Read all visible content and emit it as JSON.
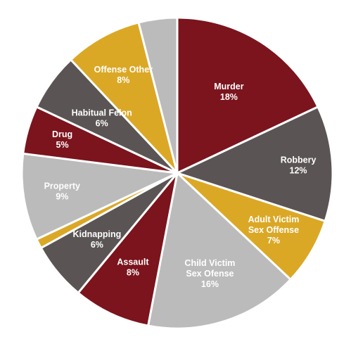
{
  "chart_data": {
    "type": "pie",
    "start_angle_deg": 0,
    "direction": "clockwise",
    "slices": [
      {
        "label": "Murder",
        "value": 18,
        "display": "18%",
        "color": "#7b141d",
        "lines": [
          "Murder",
          "18%"
        ]
      },
      {
        "label": "Robbery",
        "value": 12,
        "display": "12%",
        "color": "#5a5554",
        "lines": [
          "Robbery",
          "12%"
        ]
      },
      {
        "label": "Adult Victim Sex Offense",
        "value": 7,
        "display": "7%",
        "color": "#dba826",
        "lines": [
          "Adult Victim",
          "Sex Offense",
          "7%"
        ]
      },
      {
        "label": "Child Victim Sex Ofense",
        "value": 16,
        "display": "16%",
        "color": "#bbbbbb",
        "lines": [
          "Child Victim",
          "Sex Ofense",
          "16%"
        ]
      },
      {
        "label": "Assault",
        "value": 8,
        "display": "8%",
        "color": "#7b141d",
        "lines": [
          "Assault",
          "8%"
        ]
      },
      {
        "label": "Kidnapping",
        "value": 6,
        "display": "6%",
        "color": "#5a5554",
        "lines": [
          "Kidnapping",
          "6%"
        ]
      },
      {
        "label": "",
        "value": 1,
        "display": "",
        "color": "#dba826",
        "lines": []
      },
      {
        "label": "Property",
        "value": 9,
        "display": "9%",
        "color": "#bbbbbb",
        "lines": [
          "Property",
          "9%"
        ]
      },
      {
        "label": "Drug",
        "value": 5,
        "display": "5%",
        "color": "#7b141d",
        "lines": [
          "Drug",
          "5%"
        ]
      },
      {
        "label": "Habitual Felon",
        "value": 6,
        "display": "6%",
        "color": "#5a5554",
        "lines": [
          "Habitual Felon",
          "6%"
        ]
      },
      {
        "label": "Offense Other",
        "value": 8,
        "display": "8%",
        "color": "#dba826",
        "lines": [
          "Offense Other",
          "8%"
        ]
      },
      {
        "label": "",
        "value": 4,
        "display": "",
        "color": "#bbbbbb",
        "lines": []
      }
    ]
  }
}
